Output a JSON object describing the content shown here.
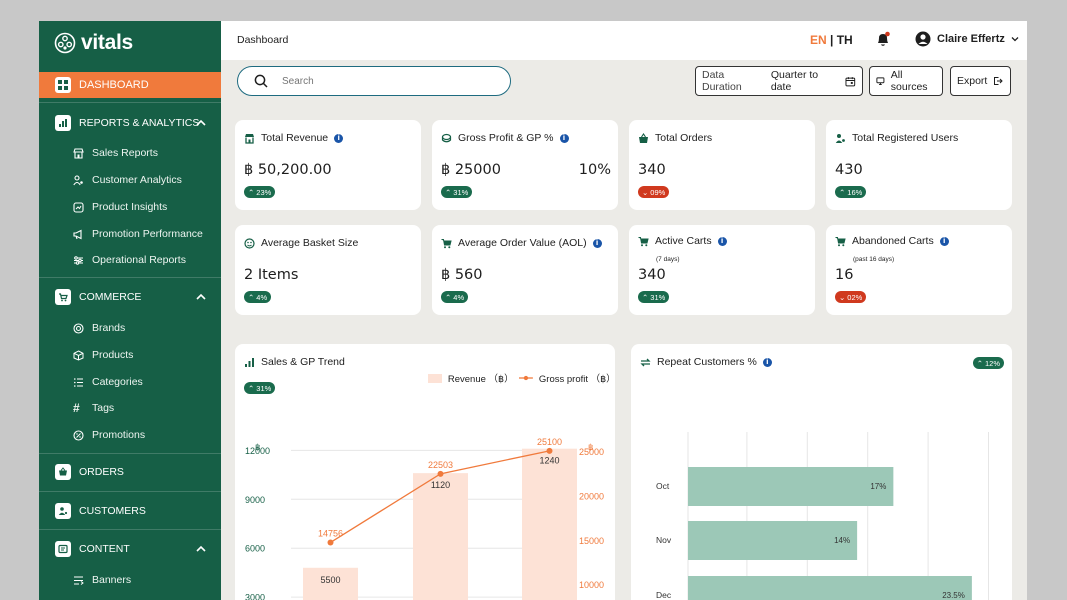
{
  "brand": {
    "name": "vitals"
  },
  "sidebar": {
    "active": {
      "label": "DASHBOARD"
    },
    "sections": [
      {
        "label": "REPORTS & ANALYTICS",
        "items": [
          "Sales Reports",
          "Customer Analytics",
          "Product Insights",
          "Promotion Performance",
          "Operational Reports"
        ]
      },
      {
        "label": "COMMERCE",
        "items": [
          "Brands",
          "Products",
          "Categories",
          "Tags",
          "Promotions"
        ]
      },
      {
        "label": "ORDERS"
      },
      {
        "label": "CUSTOMERS"
      },
      {
        "label": "CONTENT",
        "items": [
          "Banners"
        ]
      }
    ]
  },
  "header": {
    "breadcrumb": "Dashboard",
    "lang_en": "EN",
    "lang_sep": "|",
    "lang_th": "TH",
    "user_name": "Claire Effertz"
  },
  "toolbar": {
    "search_placeholder": "Search",
    "duration_label": "Data Duration",
    "duration_value": "Quarter to date",
    "sources_label": "All sources",
    "export_label": "Export"
  },
  "kpis": [
    {
      "title": "Total Revenue",
      "value": "฿ 50,200.00",
      "badge": "23%",
      "trend": "up"
    },
    {
      "title": "Gross Profit & GP %",
      "value": "฿ 25000",
      "value2": "10%",
      "badge": "31%",
      "trend": "up"
    },
    {
      "title": "Total Orders",
      "value": "340",
      "badge": "09%",
      "trend": "down"
    },
    {
      "title": "Total Registered Users",
      "value": "430",
      "badge": "16%",
      "trend": "up"
    },
    {
      "title": "Average Basket Size",
      "value": "2 Items",
      "badge": "4%",
      "trend": "up"
    },
    {
      "title": "Average Order Value (AOL)",
      "value": "฿ 560",
      "badge": "4%",
      "trend": "up"
    },
    {
      "title": "Active Carts",
      "note": "(7 days)",
      "value": "340",
      "badge": "31%",
      "trend": "up"
    },
    {
      "title": "Abandoned Carts",
      "note": "(past 16 days)",
      "value": "16",
      "badge": "02%",
      "trend": "down"
    }
  ],
  "colors": {
    "sidebar": "#165f46",
    "accent": "#f07a3c",
    "up": "#1a6b4d",
    "down": "#d0391e",
    "bar": "#fde2d6",
    "hbar": "#9cc8b7"
  },
  "chart_data": [
    {
      "type": "bar",
      "title": "Sales & GP Trend",
      "badge": "31%",
      "left_unit": "฿",
      "right_unit": "฿",
      "left_ticks": [
        "12000",
        "9000",
        "6000",
        "3000"
      ],
      "right_ticks": [
        "25000",
        "20000",
        "15000",
        "10000"
      ],
      "series": [
        {
          "name": "Revenue （฿）",
          "values": [
            5500,
            1120,
            1240
          ]
        },
        {
          "name": "Gross profit （฿）",
          "values": [
            14756,
            22503,
            25100
          ]
        }
      ],
      "bar_heights_units": [
        4800,
        10600,
        12100
      ],
      "left_ylim": [
        1600,
        13000
      ],
      "right_ylim": [
        6000,
        27000
      ]
    },
    {
      "type": "bar",
      "orientation": "horizontal",
      "title": "Repeat Customers %",
      "badge": "12%",
      "categories": [
        "Oct",
        "Nov",
        "Dec"
      ],
      "values": [
        17,
        14,
        23.5
      ],
      "value_labels": [
        "17%",
        "14%",
        "23.5%"
      ],
      "xlim": [
        0,
        25
      ]
    }
  ]
}
